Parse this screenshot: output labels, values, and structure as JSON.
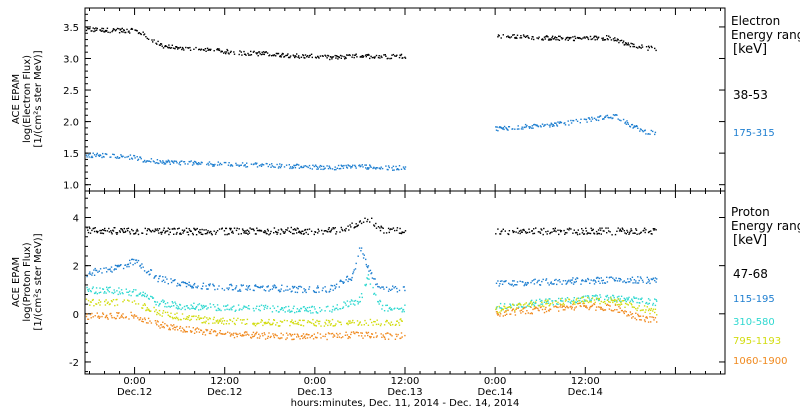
{
  "chart_data": [
    {
      "type": "scatter",
      "panel": "electron",
      "ylabel_lines": [
        "ACE EPAM",
        "log(Electron Flux)",
        "[1/(cm²s ster MeV)]"
      ],
      "ylim": [
        0.9,
        3.8
      ],
      "yticks": [
        1.0,
        1.5,
        2.0,
        2.5,
        3.0,
        3.5
      ],
      "ytick_labels": [
        "1.0",
        "1.5",
        "2.0",
        "2.5",
        "3.0",
        "3.5"
      ],
      "xlim_hours": [
        -6.6,
        78.6
      ],
      "legend_title": [
        "Electron",
        "Energy ranges",
        "[keV]"
      ],
      "series": [
        {
          "name": "38-53",
          "color": "#000000",
          "segments": [
            {
              "x": [
                -6.5,
                -4,
                -1,
                0,
                1,
                2,
                3,
                4,
                6,
                10,
                14,
                18,
                22,
                24,
                26,
                30,
                33,
                36
              ],
              "y": [
                3.47,
                3.46,
                3.45,
                3.45,
                3.4,
                3.3,
                3.25,
                3.2,
                3.17,
                3.14,
                3.1,
                3.08,
                3.05,
                3.04,
                3.02,
                3.05,
                3.04,
                3.05
              ]
            },
            {
              "x": [
                48,
                52,
                56,
                60,
                63,
                64,
                66,
                68,
                69.5
              ],
              "y": [
                3.36,
                3.35,
                3.33,
                3.33,
                3.34,
                3.3,
                3.22,
                3.18,
                3.16
              ]
            }
          ]
        },
        {
          "name": "175-315",
          "color": "#1f7fd0",
          "segments": [
            {
              "x": [
                -6.5,
                -3,
                0,
                1,
                3,
                6,
                10,
                14,
                18,
                22,
                26,
                30,
                33,
                36
              ],
              "y": [
                1.48,
                1.47,
                1.44,
                1.4,
                1.38,
                1.36,
                1.34,
                1.33,
                1.31,
                1.3,
                1.28,
                1.3,
                1.27,
                1.28
              ]
            },
            {
              "x": [
                48,
                51,
                54,
                57,
                60,
                62,
                64,
                66,
                68,
                69.5
              ],
              "y": [
                1.9,
                1.92,
                1.95,
                1.98,
                2.03,
                2.07,
                2.1,
                1.95,
                1.85,
                1.82
              ]
            }
          ]
        }
      ]
    },
    {
      "type": "scatter",
      "panel": "proton",
      "ylabel_lines": [
        "ACE EPAM",
        "log(Proton Flux)",
        "[1/(cm²s ster MeV)]"
      ],
      "ylim": [
        -2.5,
        5.1
      ],
      "yticks": [
        -2,
        0,
        2,
        4
      ],
      "ytick_labels": [
        "-2",
        "0",
        "2",
        "4"
      ],
      "xlim_hours": [
        -6.6,
        78.6
      ],
      "xticks_hours": [
        0,
        12,
        24,
        36,
        48,
        60
      ],
      "xtick_labels": [
        [
          "0:00",
          "Dec.12"
        ],
        [
          "12:00",
          "Dec.12"
        ],
        [
          "0:00",
          "Dec.13"
        ],
        [
          "12:00",
          "Dec.13"
        ],
        [
          "0:00",
          "Dec.14"
        ],
        [
          "12:00",
          "Dec.14"
        ]
      ],
      "xlabel": "hours:minutes, Dec. 11, 2014 - Dec. 14, 2014",
      "legend_title": [
        "Proton",
        "Energy ranges",
        "[keV]"
      ],
      "series": [
        {
          "name": "47-68",
          "color": "#000000",
          "segments": [
            {
              "x": [
                -6.5,
                0,
                6,
                12,
                18,
                20,
                22,
                24,
                28,
                30,
                31,
                32,
                33,
                36
              ],
              "y": [
                3.5,
                3.45,
                3.45,
                3.45,
                3.45,
                3.5,
                3.45,
                3.45,
                3.5,
                3.9,
                4.0,
                3.7,
                3.5,
                3.45
              ]
            },
            {
              "x": [
                48,
                54,
                60,
                66,
                69.5
              ],
              "y": [
                3.45,
                3.45,
                3.45,
                3.45,
                3.45
              ]
            }
          ]
        },
        {
          "name": "115-195",
          "color": "#1f7fd0",
          "segments": [
            {
              "x": [
                -6.5,
                -3,
                0,
                1,
                3,
                6,
                10,
                14,
                18,
                22,
                26,
                29,
                30,
                31,
                32,
                33,
                36
              ],
              "y": [
                1.7,
                1.9,
                2.2,
                2.0,
                1.5,
                1.3,
                1.15,
                1.1,
                1.1,
                1.05,
                1.05,
                1.6,
                2.8,
                2.0,
                1.3,
                1.05,
                1.05
              ]
            },
            {
              "x": [
                48,
                54,
                60,
                66,
                69.5
              ],
              "y": [
                1.3,
                1.35,
                1.4,
                1.45,
                1.4
              ]
            }
          ]
        },
        {
          "name": "310-580",
          "color": "#2fd8d0",
          "segments": [
            {
              "x": [
                -6.5,
                -3,
                0,
                1,
                3,
                6,
                10,
                14,
                18,
                22,
                26,
                30,
                31,
                32,
                33,
                36
              ],
              "y": [
                1.0,
                1.0,
                0.9,
                0.8,
                0.5,
                0.35,
                0.3,
                0.25,
                0.25,
                0.2,
                0.2,
                0.6,
                1.6,
                0.7,
                0.25,
                0.25
              ]
            },
            {
              "x": [
                48,
                54,
                60,
                62,
                66,
                69.5
              ],
              "y": [
                0.3,
                0.5,
                0.65,
                0.7,
                0.6,
                0.5
              ]
            }
          ]
        },
        {
          "name": "795-1193",
          "color": "#d2dc10",
          "segments": [
            {
              "x": [
                -6.5,
                -3,
                0,
                1,
                3,
                6,
                10,
                14,
                18,
                22,
                26,
                30,
                33,
                36
              ],
              "y": [
                0.5,
                0.5,
                0.45,
                0.35,
                0.1,
                -0.1,
                -0.25,
                -0.3,
                -0.35,
                -0.35,
                -0.35,
                -0.3,
                -0.35,
                -0.3
              ]
            },
            {
              "x": [
                48,
                54,
                60,
                64,
                66,
                69.5
              ],
              "y": [
                0.2,
                0.45,
                0.6,
                0.55,
                0.35,
                0.1
              ]
            }
          ]
        },
        {
          "name": "1060-1900",
          "color": "#f08a20",
          "segments": [
            {
              "x": [
                -6.5,
                -3,
                0,
                1,
                3,
                6,
                10,
                14,
                18,
                22,
                26,
                30,
                33,
                36
              ],
              "y": [
                -0.1,
                -0.05,
                -0.05,
                -0.2,
                -0.4,
                -0.6,
                -0.75,
                -0.85,
                -0.9,
                -0.9,
                -0.9,
                -0.85,
                -0.9,
                -0.9
              ]
            },
            {
              "x": [
                48,
                54,
                60,
                64,
                66,
                69.5
              ],
              "y": [
                0.05,
                0.2,
                0.35,
                0.25,
                -0.05,
                -0.25
              ]
            }
          ]
        }
      ]
    }
  ]
}
